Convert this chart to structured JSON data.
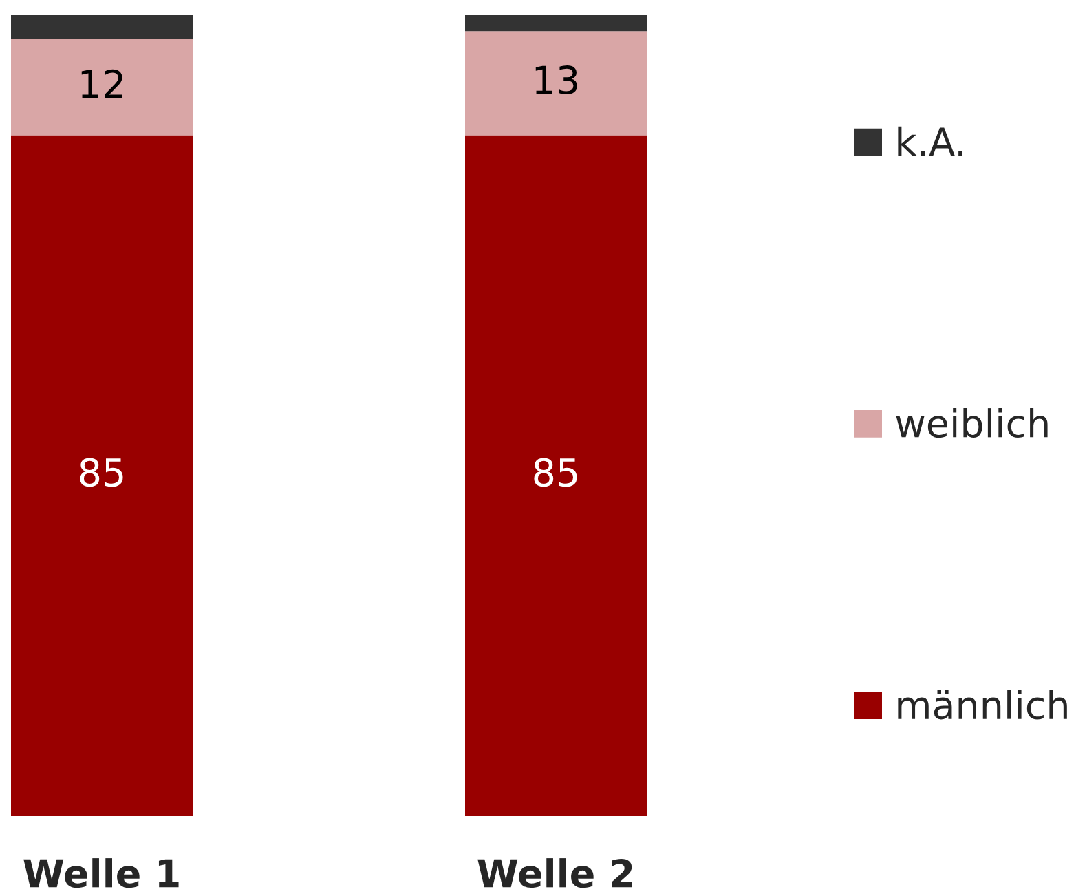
{
  "chart_data": {
    "type": "bar",
    "stacked": true,
    "categories": [
      "Welle 1",
      "Welle 2"
    ],
    "series": [
      {
        "name": "männlich",
        "color": "#990000",
        "values": [
          85,
          85
        ],
        "value_labels": [
          "85",
          "85"
        ]
      },
      {
        "name": "weiblich",
        "color": "#d9a6a6",
        "values": [
          12,
          13
        ],
        "value_labels": [
          "12",
          "13"
        ]
      },
      {
        "name": "k.A.",
        "color": "#333333",
        "values": [
          3,
          2
        ],
        "value_labels": [
          null,
          null
        ]
      }
    ],
    "ylim": [
      0,
      100
    ],
    "tick_labels": "x",
    "grid": false,
    "legend": "right"
  }
}
